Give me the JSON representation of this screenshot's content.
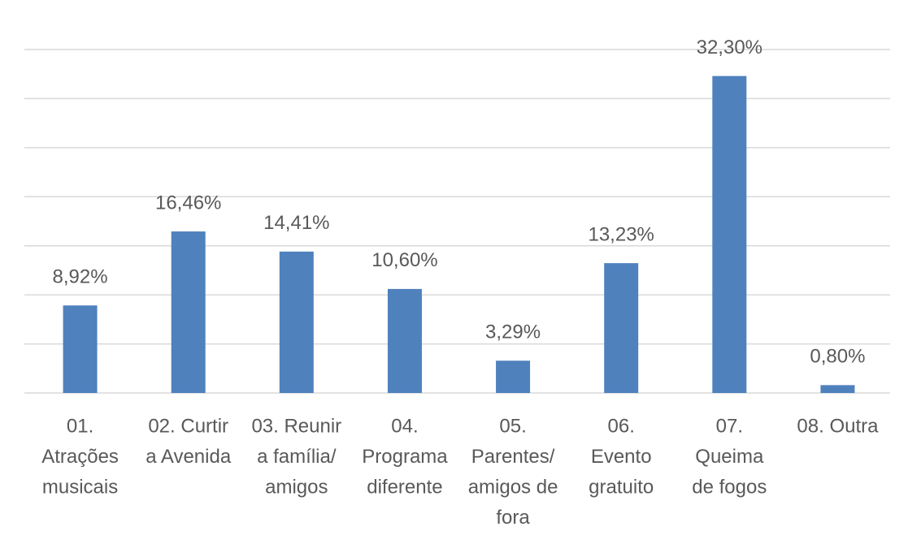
{
  "chart_data": {
    "type": "bar",
    "categories": [
      [
        "01.",
        "Atrações",
        "musicais"
      ],
      [
        "02. Curtir",
        "a Avenida"
      ],
      [
        "03. Reunir",
        "a família/",
        "amigos"
      ],
      [
        "04.",
        "Programa",
        "diferente"
      ],
      [
        "05.",
        "Parentes/",
        "amigos de",
        "fora"
      ],
      [
        "06.",
        "Evento",
        "gratuito"
      ],
      [
        "07.",
        "Queima",
        "de fogos"
      ],
      [
        "08. Outra"
      ]
    ],
    "values": [
      8.92,
      16.46,
      14.41,
      10.6,
      3.29,
      13.23,
      32.3,
      0.8
    ],
    "value_labels": [
      "8,92%",
      "16,46%",
      "14,41%",
      "10,60%",
      "3,29%",
      "13,23%",
      "32,30%",
      "0,80%"
    ],
    "color": "#4f81bd",
    "ylim": [
      0,
      35
    ],
    "yticks": [
      0,
      5,
      10,
      15,
      20,
      25,
      30,
      35
    ],
    "grid": true
  }
}
